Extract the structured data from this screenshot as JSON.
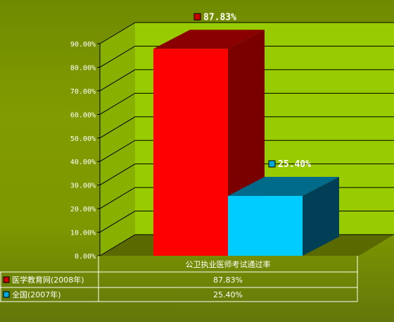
{
  "chart_data": {
    "type": "bar",
    "categories": [
      "公卫执业医师考试通过率"
    ],
    "series": [
      {
        "name": "医学教育网(2008年)",
        "values": [
          87.83
        ],
        "label": "87.83%",
        "color": "#ff0000",
        "side_color": "#7a0000",
        "top_color": "#8a0000",
        "marker_color": "#cc0000"
      },
      {
        "name": "全国(2007年)",
        "values": [
          25.4
        ],
        "label": "25.40%",
        "color": "#00ccff",
        "side_color": "#003f55",
        "top_color": "#006a8a",
        "marker_color": "#00a8e0"
      }
    ],
    "y_ticks": [
      "0.00%",
      "10.00%",
      "20.00%",
      "30.00%",
      "40.00%",
      "50.00%",
      "60.00%",
      "70.00%",
      "80.00%",
      "90.00%"
    ],
    "ylim": [
      0,
      90
    ],
    "grid": true,
    "plot_back_color": "#99cc00",
    "plot_floor_color": "#5a6a00",
    "title": "",
    "xlabel": "",
    "ylabel": ""
  }
}
